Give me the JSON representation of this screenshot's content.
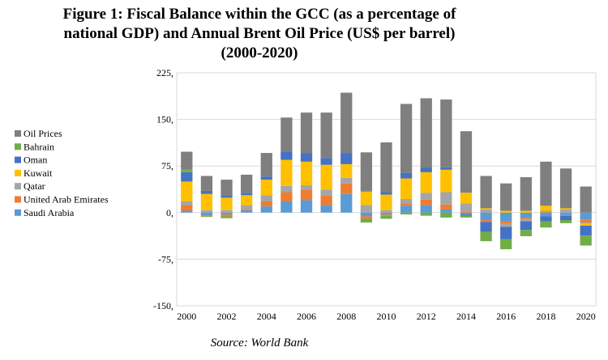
{
  "title_lines": [
    "Figure 1: Fiscal Balance within the GCC (as a percentage of",
    "national GDP) and Annual Brent Oil Price (US$ per barrel)",
    "(2000-2020)"
  ],
  "source": "Source: World Bank",
  "chart_data": {
    "type": "bar",
    "stacked": true,
    "ylim": [
      -150,
      225
    ],
    "yticks": [
      "225,",
      "150,",
      "75,",
      "0,",
      "-75,",
      "-150,"
    ],
    "ytick_values": [
      225,
      150,
      75,
      0,
      -75,
      -150
    ],
    "years": [
      2000,
      2001,
      2002,
      2003,
      2004,
      2005,
      2006,
      2007,
      2008,
      2009,
      2010,
      2011,
      2012,
      2013,
      2014,
      2015,
      2016,
      2017,
      2018,
      2019,
      2020
    ],
    "xticks": [
      "2000",
      "2002",
      "2004",
      "2006",
      "2008",
      "2010",
      "2012",
      "2014",
      "2016",
      "2018",
      "2020"
    ],
    "legend_position": "left",
    "series": [
      {
        "name": "Saudi Arabia",
        "color": "#5b9bd5",
        "values": [
          3,
          -5,
          -3,
          4,
          10,
          18,
          20,
          12,
          30,
          -6,
          -3,
          11,
          12,
          5,
          -3,
          -12,
          -14,
          -9,
          -6,
          -4,
          -11
        ]
      },
      {
        "name": "United Arab Emirates",
        "color": "#ed7d31",
        "values": [
          9,
          -1,
          -3,
          2,
          8,
          15,
          17,
          15,
          17,
          -4,
          -2,
          4,
          9,
          8,
          2,
          -3,
          -4,
          -2,
          1,
          -1,
          -5
        ]
      },
      {
        "name": "Qatar",
        "color": "#a5a5a5",
        "values": [
          6,
          4,
          4,
          6,
          10,
          10,
          7,
          10,
          9,
          12,
          4,
          7,
          11,
          20,
          13,
          5,
          -5,
          -3,
          2,
          5,
          -2
        ]
      },
      {
        "name": "Kuwait",
        "color": "#ffc000",
        "values": [
          32,
          26,
          20,
          16,
          25,
          42,
          38,
          40,
          22,
          22,
          25,
          33,
          33,
          36,
          17,
          2,
          3,
          3,
          8,
          2,
          -3
        ]
      },
      {
        "name": "Oman",
        "color": "#4472c4",
        "values": [
          15,
          5,
          4,
          4,
          5,
          13,
          14,
          11,
          18,
          1,
          4,
          9,
          7,
          4,
          -2,
          -16,
          -20,
          -14,
          -8,
          -7,
          -16
        ]
      },
      {
        "name": "Bahrain",
        "color": "#70ad47",
        "values": [
          4,
          -1,
          -3,
          0,
          0,
          0,
          0,
          0,
          0,
          -6,
          -5,
          -3,
          -5,
          -8,
          -3,
          -15,
          -16,
          -10,
          -10,
          -5,
          -16
        ]
      },
      {
        "name": "Oil Prices",
        "color": "#7f7f7f",
        "values": [
          29,
          24,
          25,
          29,
          38,
          55,
          65,
          73,
          97,
          62,
          80,
          111,
          112,
          109,
          99,
          52,
          44,
          54,
          71,
          64,
          42
        ]
      }
    ]
  }
}
